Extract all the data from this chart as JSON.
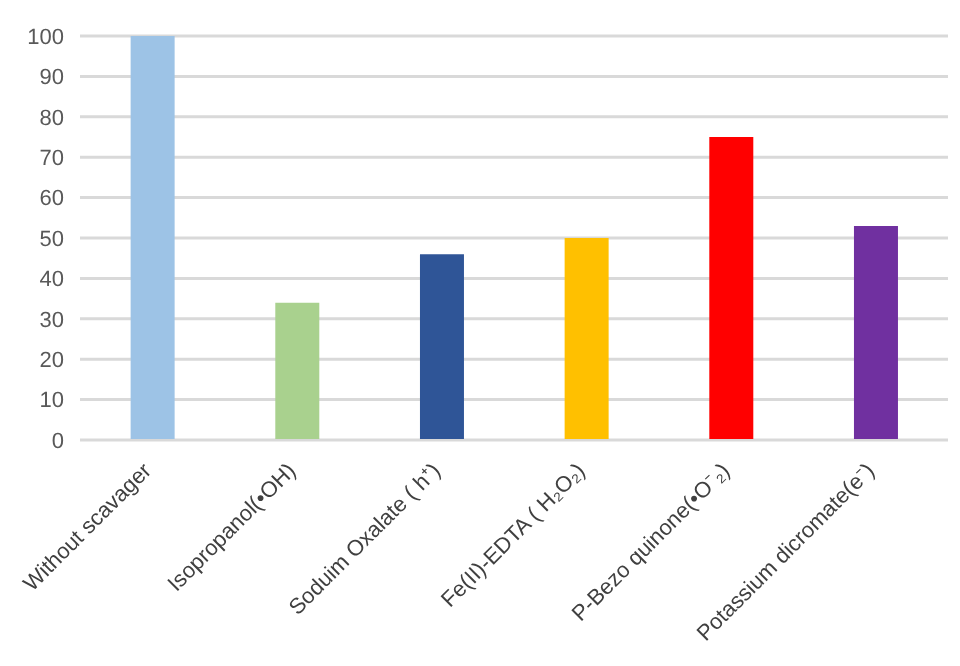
{
  "chart_data": {
    "type": "bar",
    "categories": [
      "Without scavager",
      "Isopropanol(•OH)",
      "Soduim Oxalate ( h⁺)",
      "Fe(II)-EDTA ( H₂O₂)",
      "P-Bezo quinone(•O⁻₂)",
      "Potassium dicromate(e⁻)"
    ],
    "values": [
      100,
      34,
      46,
      50,
      75,
      53
    ],
    "colors": [
      "#9dc3e6",
      "#a9d18e",
      "#2f5597",
      "#ffc000",
      "#ff0000",
      "#7030a0"
    ],
    "ylim": [
      0,
      100
    ],
    "yticks": [
      0,
      10,
      20,
      30,
      40,
      50,
      60,
      70,
      80,
      90,
      100
    ],
    "grid": "y"
  }
}
